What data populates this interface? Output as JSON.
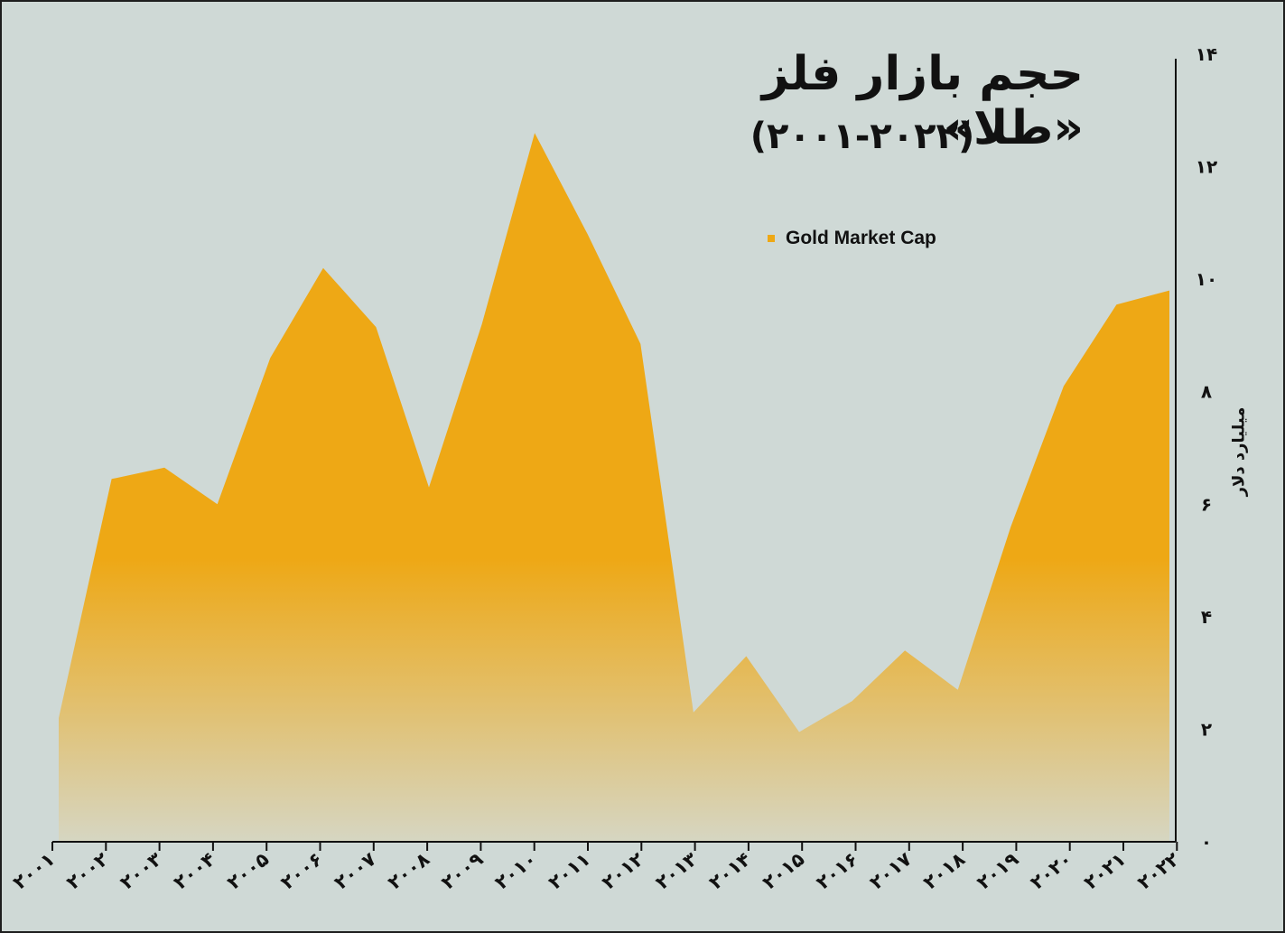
{
  "chart_data": {
    "type": "area",
    "title": "حجم بازار فلز «طلا»",
    "subtitle": "(۲۰۰۱-۲۰۲۲)",
    "ylabel": "میلیارد دلار",
    "xlabel": "",
    "ylim": [
      0,
      14
    ],
    "yticks": [
      "۰",
      "۲",
      "۴",
      "۶",
      "۸",
      "۱۰",
      "۱۲",
      "۱۴"
    ],
    "ytick_values": [
      0,
      2,
      4,
      6,
      8,
      10,
      12,
      14
    ],
    "categories": [
      "۲۰۰۱",
      "۲۰۰۲",
      "۲۰۰۳",
      "۲۰۰۴",
      "۲۰۰۵",
      "۲۰۰۶",
      "۲۰۰۷",
      "۲۰۰۸",
      "۲۰۰۹",
      "۲۰۱۰",
      "۲۰۱۱",
      "۲۰۱۲",
      "۲۰۱۳",
      "۲۰۱۴",
      "۲۰۱۵",
      "۲۰۱۶",
      "۲۰۱۷",
      "۲۰۱۸",
      "۲۰۱۹",
      "۲۰۲۰",
      "۲۰۲۱",
      "۲۰۲۲"
    ],
    "series": [
      {
        "name": "Gold Market Cap",
        "color": "#eea815",
        "values": [
          2.2,
          6.45,
          6.65,
          6.0,
          8.6,
          10.2,
          9.15,
          6.3,
          9.2,
          12.6,
          10.8,
          8.85,
          2.3,
          3.3,
          1.95,
          2.5,
          3.4,
          2.7,
          5.6,
          8.1,
          9.55,
          9.8
        ]
      }
    ],
    "legend_position": "top-center",
    "grid": false
  }
}
